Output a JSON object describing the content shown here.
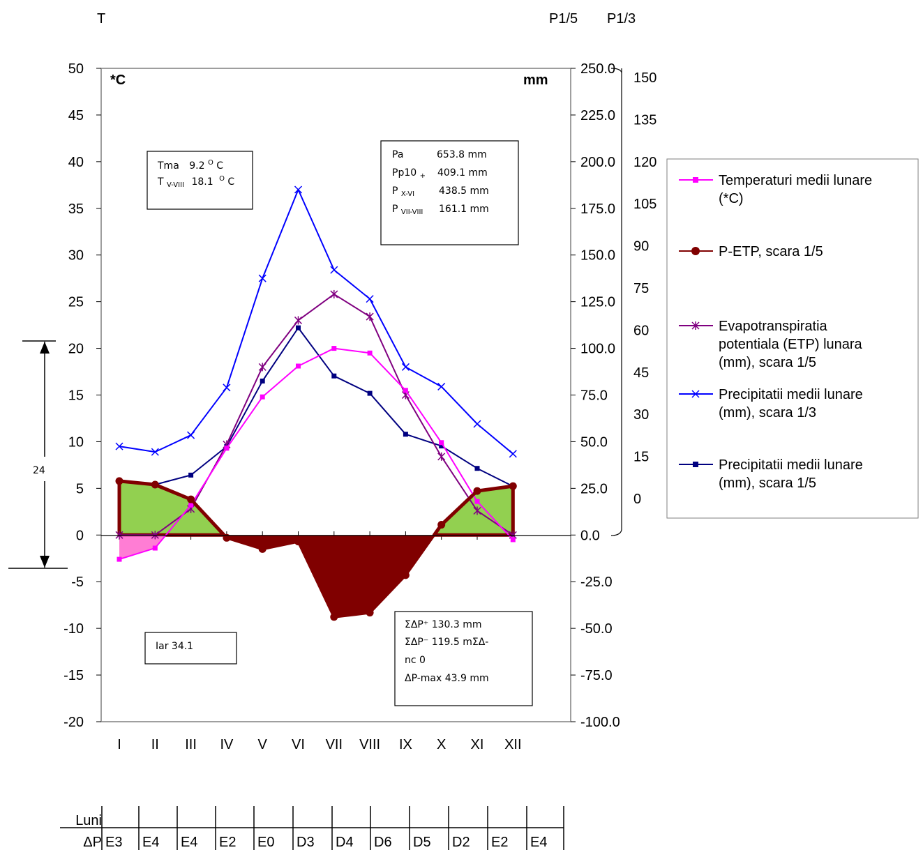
{
  "chart_data": {
    "type": "line",
    "categories": [
      "I",
      "II",
      "III",
      "IV",
      "V",
      "VI",
      "VII",
      "VIII",
      "IX",
      "X",
      "XI",
      "XII"
    ],
    "series": [
      {
        "name": "Temperaturi medii lunare (*C)",
        "color": "#ff00ff",
        "axis": "T",
        "values": [
          -2.6,
          -1.4,
          3.2,
          9.3,
          14.8,
          18.1,
          20.0,
          19.5,
          15.5,
          9.9,
          3.6,
          -0.5
        ]
      },
      {
        "name": "P-ETP, scara 1/5",
        "color": "#800000",
        "axis": "P1/5",
        "values": [
          28.9,
          27.0,
          19.1,
          -1.5,
          -7.5,
          -3.5,
          -43.9,
          -41.6,
          -21.5,
          5.5,
          23.6,
          26.2
        ]
      },
      {
        "name": "Evapotranspiratia potentiala (ETP) lunara (mm), scara 1/5",
        "color": "#800080",
        "axis": "P1/5",
        "values": [
          0.0,
          0.0,
          14.0,
          48.5,
          90.0,
          115.0,
          129.0,
          117.0,
          75.0,
          42.0,
          13.0,
          0.0
        ]
      },
      {
        "name": "Precipitatii medii lunare (mm), scara 1/3",
        "color": "#0000ff",
        "axis": "P1/3",
        "values": [
          28.5,
          26.7,
          32.1,
          47.4,
          82.5,
          111.0,
          85.2,
          75.9,
          54.0,
          47.7,
          35.7,
          26.1
        ]
      },
      {
        "name": "Precipitatii medii lunare (mm), scara 1/5",
        "color": "#000080",
        "axis": "P1/5",
        "values": [
          28.9,
          27.0,
          32.1,
          47.4,
          82.5,
          111.0,
          85.2,
          75.9,
          54.0,
          47.7,
          35.7,
          26.1
        ]
      }
    ],
    "axes": {
      "left": {
        "label": "T",
        "unit": "*C",
        "range": [
          -20,
          50
        ],
        "ticks": [
          "50",
          "45",
          "40",
          "35",
          "30",
          "25",
          "20",
          "15",
          "10",
          "5",
          "0",
          "-5",
          "-10",
          "-15",
          "-20"
        ]
      },
      "right1": {
        "label": "P1/5",
        "unit": "mm",
        "range": [
          -100,
          250
        ],
        "ticks": [
          "250.0",
          "225.0",
          "200.0",
          "175.0",
          "150.0",
          "125.0",
          "100.0",
          "75.0",
          "50.0",
          "25.0",
          "0.0",
          "-25.0",
          "-50.0",
          "-75.0",
          "-100.0"
        ]
      },
      "right2": {
        "label": "P1/3",
        "range": [
          0,
          150
        ],
        "ticks": [
          "150",
          "135",
          "120",
          "105",
          "90",
          "75",
          "60",
          "45",
          "30",
          "15",
          "0"
        ]
      }
    },
    "interval_marker": {
      "label": "24",
      "from": 20,
      "to": -3.5
    }
  },
  "labels": {
    "left_axis": "T",
    "right_axis_1": "P1/5",
    "right_axis_2": "P1/3",
    "unit_left": "*C",
    "unit_right": "mm"
  },
  "info_temp": {
    "tma_label": "Tma",
    "tma_value": "9.2",
    "tv_label": "T",
    "tv_sub": "V-VIII",
    "tv_value": "18.1",
    "sup": "O",
    "unit": "C"
  },
  "info_precip": {
    "pa_label": "Pa",
    "pa_value": "653.8 mm",
    "pp_label": "Pp10",
    "pp_sub": "+",
    "pp_value": "409.1 mm",
    "px_label": "P",
    "px_sub": "X-VI",
    "px_value": "438.5 mm",
    "pv_label": "P",
    "pv_sub": "VII-VIII",
    "pv_value": "161.1 mm"
  },
  "info_iar": {
    "text": "Iar   34.1"
  },
  "info_dp": {
    "line1": "ΣΔP⁺  130.3 mm",
    "line2": "ΣΔP⁻  119.5 mΣΔ-",
    "line3": "nc  0",
    "line4": "ΔP-max  43.9 mm"
  },
  "legend": [
    {
      "lines": [
        "Temperaturi medii lunare",
        "(*C)"
      ],
      "color": "#ff00ff",
      "marker": "square"
    },
    {
      "lines": [
        "P-ETP, scara 1/5"
      ],
      "color": "#800000",
      "marker": "circle"
    },
    {
      "lines": [
        "Evapotranspiratia",
        "potentiala (ETP) lunara",
        "(mm), scara 1/5"
      ],
      "color": "#800080",
      "marker": "star"
    },
    {
      "lines": [
        "Precipitatii medii lunare",
        "(mm), scara 1/3"
      ],
      "color": "#0000ff",
      "marker": "x"
    },
    {
      "lines": [
        "Precipitatii medii lunare",
        "(mm), scara 1/5"
      ],
      "color": "#000080",
      "marker": "square"
    }
  ],
  "table": {
    "row1_label": "Luni",
    "row2_label": "ΔP",
    "dp_codes": [
      "E3",
      "E4",
      "E4",
      "E2",
      "E0",
      "D3",
      "D4",
      "D6",
      "D5",
      "D2",
      "E2",
      "E4"
    ]
  }
}
